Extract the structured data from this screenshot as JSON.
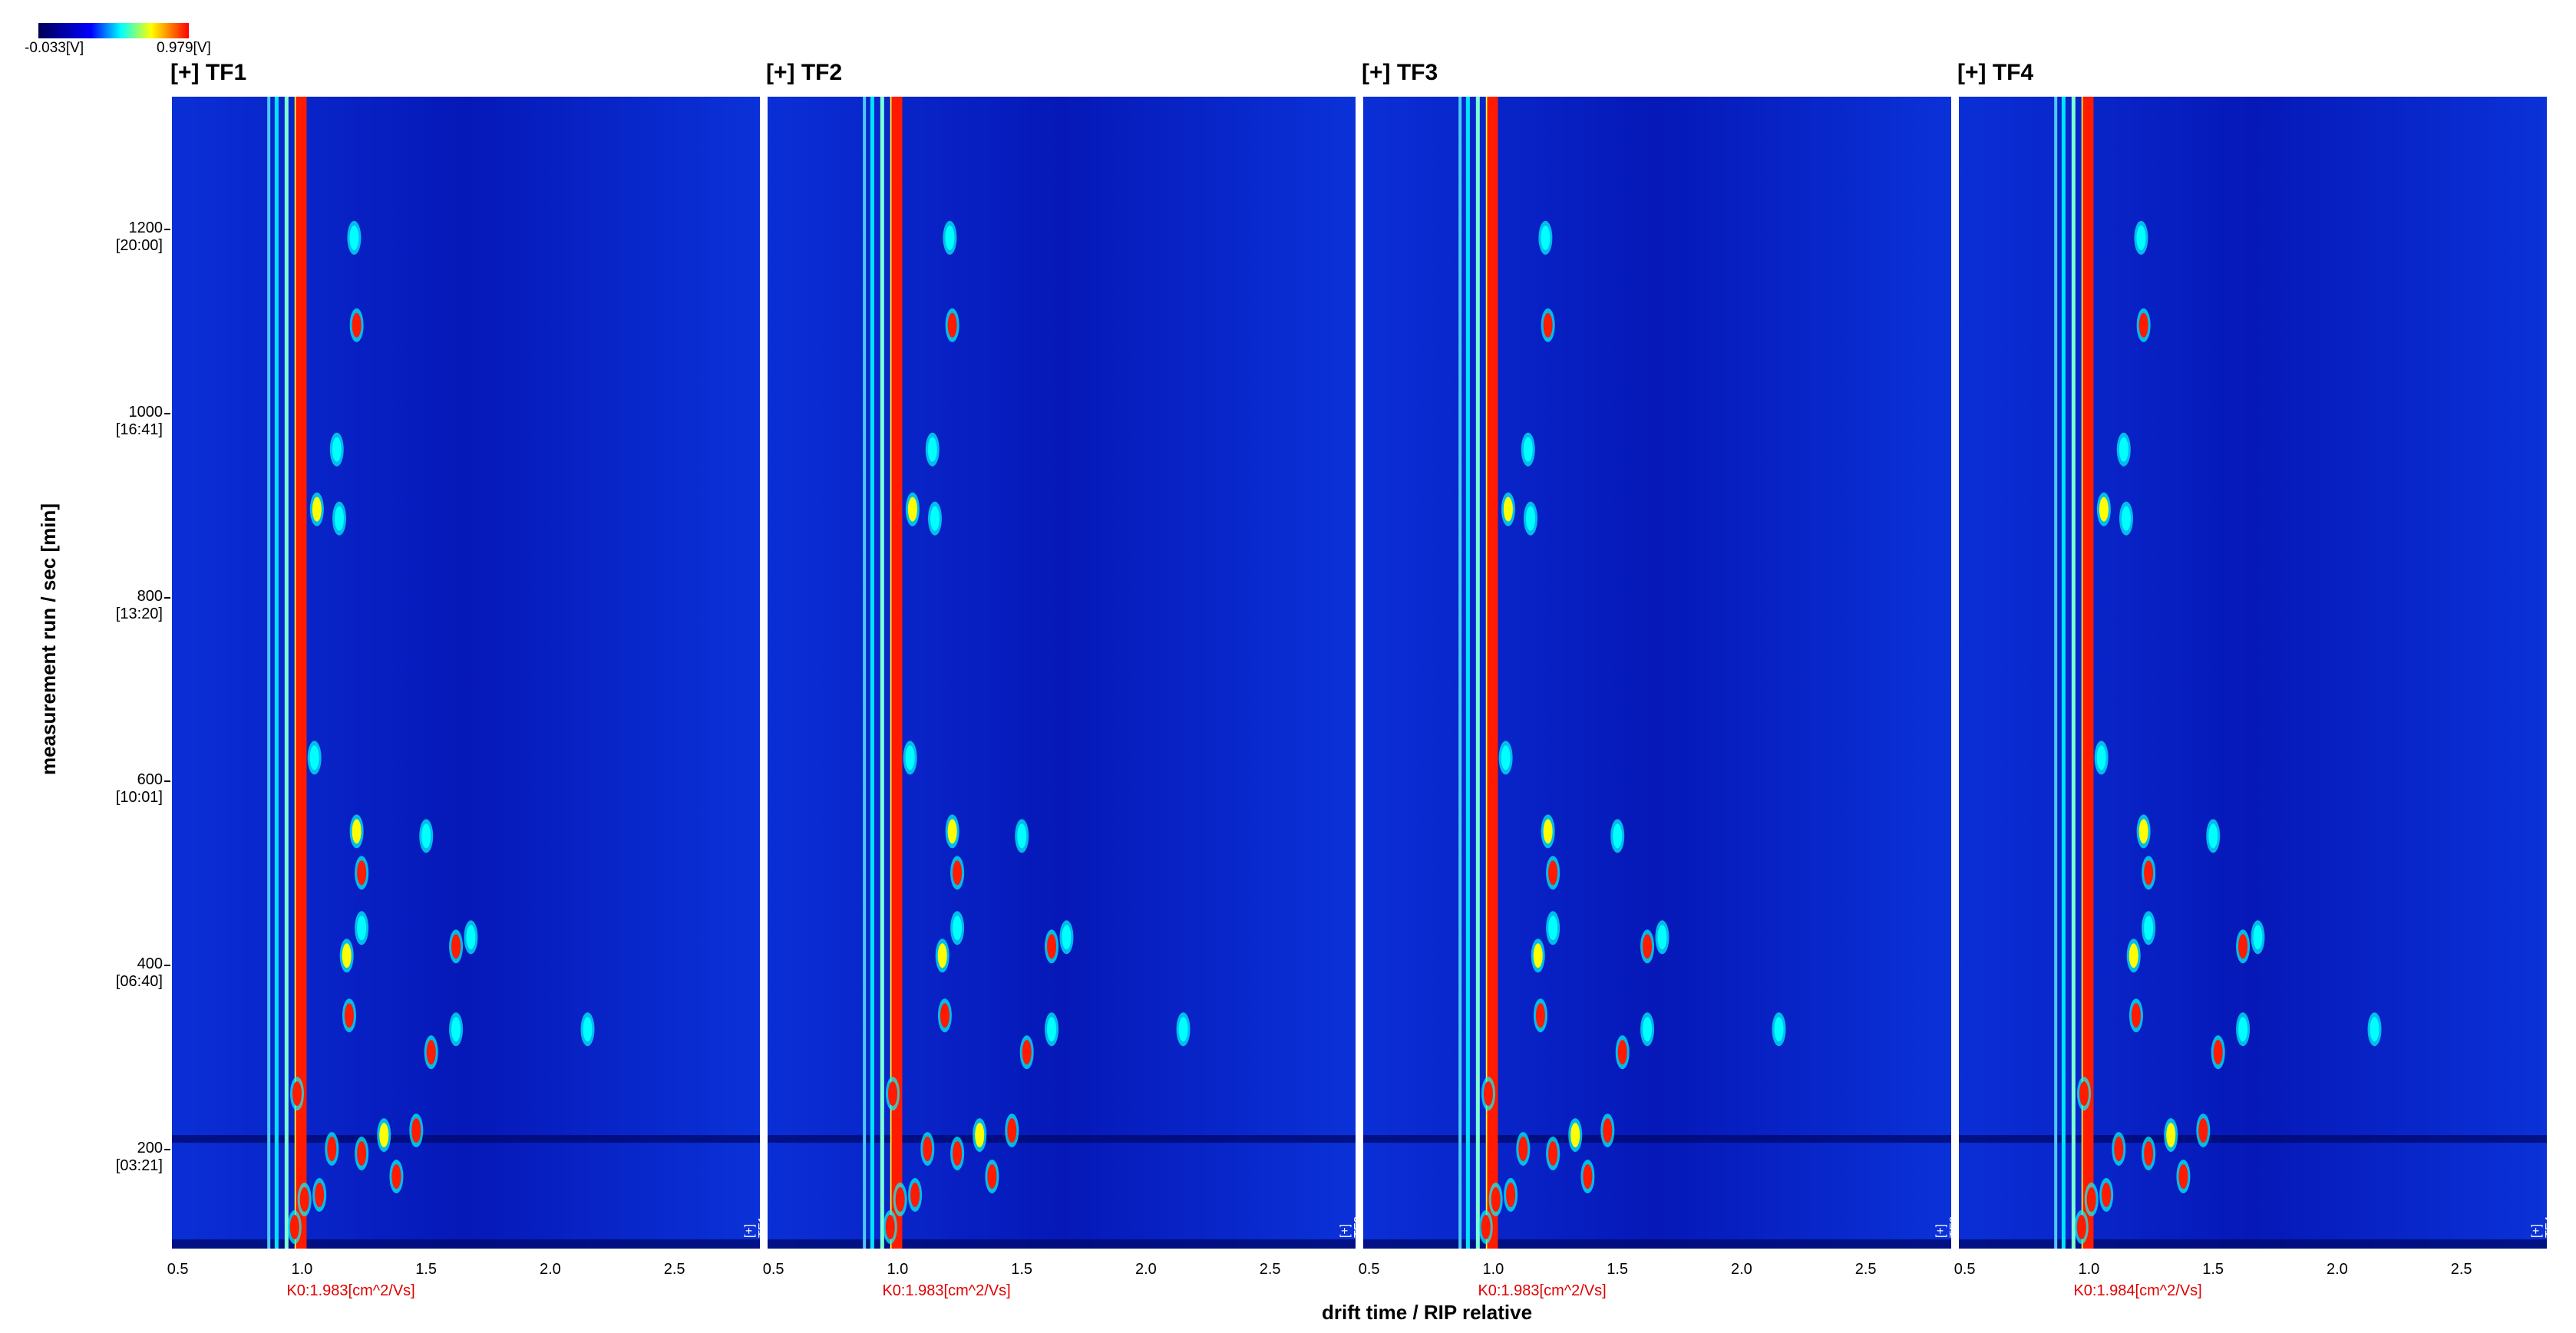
{
  "colorbar": {
    "min_label": "-0.033[V]",
    "max_label": "0.979[V]"
  },
  "axes": {
    "ylabel": "measurement run / sec [min]",
    "xlabel": "drift time / RIP relative",
    "yticks": [
      {
        "value": 1200,
        "label": "1200",
        "sub": "[20:00]"
      },
      {
        "value": 1000,
        "label": "1000",
        "sub": "[16:41]"
      },
      {
        "value": 800,
        "label": "800",
        "sub": "[13:20]"
      },
      {
        "value": 600,
        "label": "600",
        "sub": "[10:01]"
      },
      {
        "value": 400,
        "label": "400",
        "sub": "[06:40]"
      },
      {
        "value": 200,
        "label": "200",
        "sub": "[03:21]"
      }
    ],
    "xticks": [
      "0.5",
      "1.0",
      "1.5",
      "2.0",
      "2.5"
    ],
    "ylim": [
      90,
      1345
    ],
    "xlim": [
      0.47,
      2.85
    ]
  },
  "panels": [
    {
      "title": "[+] TF1",
      "tag": "[+] TF1",
      "k0": "K0:1.983[cm^2/Vs]"
    },
    {
      "title": "[+] TF2",
      "tag": "[+] TF2",
      "k0": "K0:1.983[cm^2/Vs]"
    },
    {
      "title": "[+] TF3",
      "tag": "[+] TF3",
      "k0": "K0:1.983[cm^2/Vs]"
    },
    {
      "title": "[+] TF4",
      "tag": "[+] TF4",
      "k0": "K0:1.984[cm^2/Vs]"
    }
  ],
  "chart_data": {
    "type": "heatmap",
    "x_unit": "drift time / RIP relative",
    "y_unit": "measurement run / sec",
    "color_range": [
      -0.033,
      0.979
    ],
    "peaks": [
      {
        "x": 1.22,
        "y": 1095,
        "i": 1.0
      },
      {
        "x": 1.21,
        "y": 1190,
        "i": 0.7
      },
      {
        "x": 1.14,
        "y": 960,
        "i": 0.6
      },
      {
        "x": 1.06,
        "y": 895,
        "i": 0.8
      },
      {
        "x": 1.15,
        "y": 885,
        "i": 0.6
      },
      {
        "x": 1.05,
        "y": 625,
        "i": 0.7
      },
      {
        "x": 1.22,
        "y": 545,
        "i": 0.8
      },
      {
        "x": 1.24,
        "y": 500,
        "i": 0.9
      },
      {
        "x": 1.5,
        "y": 540,
        "i": 0.6
      },
      {
        "x": 1.24,
        "y": 440,
        "i": 0.7
      },
      {
        "x": 1.62,
        "y": 420,
        "i": 0.9
      },
      {
        "x": 1.68,
        "y": 430,
        "i": 0.6
      },
      {
        "x": 1.18,
        "y": 410,
        "i": 0.8
      },
      {
        "x": 1.19,
        "y": 345,
        "i": 0.9
      },
      {
        "x": 1.62,
        "y": 330,
        "i": 0.7
      },
      {
        "x": 2.15,
        "y": 330,
        "i": 0.6
      },
      {
        "x": 1.52,
        "y": 305,
        "i": 0.9
      },
      {
        "x": 1.46,
        "y": 220,
        "i": 1.0
      },
      {
        "x": 1.33,
        "y": 215,
        "i": 0.8
      },
      {
        "x": 1.12,
        "y": 200,
        "i": 1.0
      },
      {
        "x": 1.24,
        "y": 195,
        "i": 0.9
      },
      {
        "x": 1.38,
        "y": 170,
        "i": 1.0
      },
      {
        "x": 0.98,
        "y": 260,
        "i": 1.0
      },
      {
        "x": 1.01,
        "y": 145,
        "i": 1.0
      },
      {
        "x": 0.97,
        "y": 115,
        "i": 1.0
      },
      {
        "x": 1.07,
        "y": 150,
        "i": 1.0
      }
    ]
  }
}
